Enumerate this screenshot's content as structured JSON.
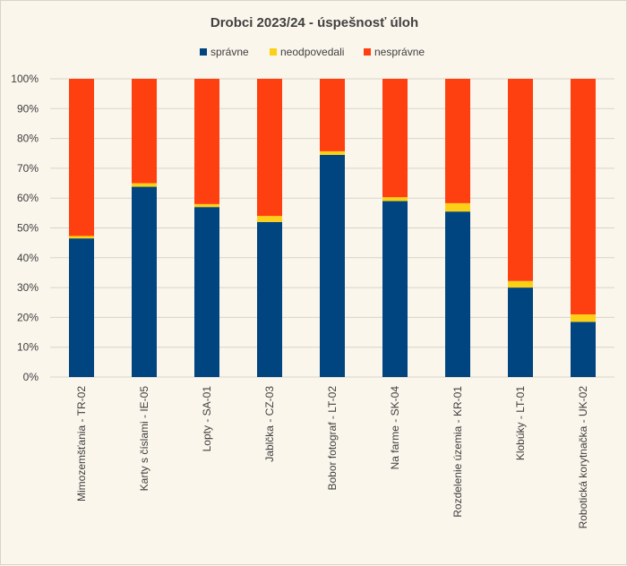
{
  "chart_data": {
    "type": "bar",
    "stacked": true,
    "title": "Drobci 2023/24 - úspešnosť úloh",
    "categories": [
      "Mimozemšťania - TR-02",
      "Karty s číslami - IE-05",
      "Lopty - SA-01",
      "Jablčka - CZ-03",
      "Bobor fotograf - LT-02",
      "Na farme - SK-04",
      "Rozdelenie územia - KR-01",
      "Klobúky - LT-01",
      "Robotická korytnačka - UK-02"
    ],
    "series": [
      {
        "name": "správne",
        "color": "#00457f",
        "values": [
          46.5,
          63.8,
          57.0,
          52.0,
          74.5,
          59.0,
          55.5,
          30.0,
          18.5
        ]
      },
      {
        "name": "neodpovedali",
        "color": "#fdd017",
        "values": [
          0.8,
          1.2,
          1.0,
          2.0,
          1.2,
          1.3,
          2.8,
          2.2,
          2.5
        ]
      },
      {
        "name": "nesprávne",
        "color": "#fe4010",
        "values": [
          52.7,
          35.0,
          42.0,
          46.0,
          24.3,
          39.7,
          41.7,
          67.8,
          79.0
        ]
      }
    ],
    "ylim": [
      0,
      100
    ],
    "yticks": [
      "0%",
      "10%",
      "20%",
      "30%",
      "40%",
      "50%",
      "60%",
      "70%",
      "80%",
      "90%",
      "100%"
    ],
    "legend_position": "top",
    "grid": true
  }
}
